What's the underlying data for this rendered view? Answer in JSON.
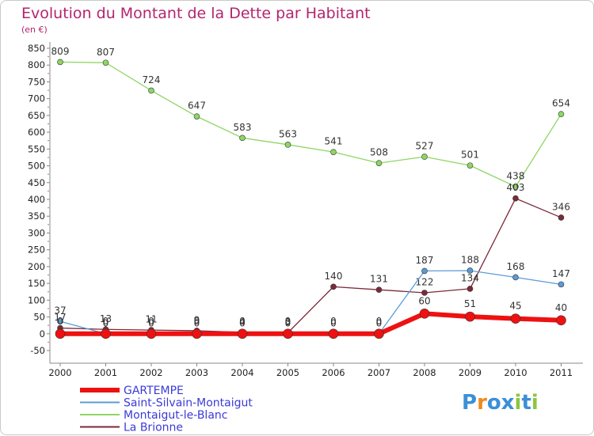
{
  "chart_data": {
    "type": "line",
    "title": "Evolution du Montant de la Dette par Habitant",
    "subtitle": "(en €)",
    "x": [
      "2000",
      "2001",
      "2002",
      "2003",
      "2004",
      "2005",
      "2006",
      "2007",
      "2008",
      "2009",
      "2010",
      "2011"
    ],
    "yticks": [
      -50,
      0,
      50,
      100,
      150,
      200,
      250,
      300,
      350,
      400,
      450,
      500,
      550,
      600,
      650,
      700,
      750,
      800,
      850
    ],
    "ylim": [
      -50,
      850
    ],
    "grid": false,
    "legend": "bottom-left",
    "series": [
      {
        "name": "Montaigut-le-Blanc",
        "color": "#8ed663",
        "values": [
          809,
          807,
          724,
          647,
          583,
          563,
          541,
          508,
          527,
          501,
          438,
          654
        ],
        "labels": [
          "809",
          "807",
          "724",
          "647",
          "583",
          "563",
          "541",
          "508",
          "527",
          "501",
          "438",
          "654"
        ],
        "width": 1.3,
        "marker": 3.5
      },
      {
        "name": "La Brionne",
        "color": "#7b2a38",
        "values": [
          17,
          13,
          11,
          9,
          4,
          3,
          140,
          131,
          122,
          134,
          403,
          346
        ],
        "labels": [
          "17",
          "13",
          "11",
          "9",
          "4",
          "3",
          "140",
          "131",
          "122",
          "134",
          "403",
          "346"
        ],
        "width": 1.3,
        "marker": 3.5
      },
      {
        "name": "Saint-Silvain-Montaigut",
        "color": "#5b9bd5",
        "values": [
          37,
          0,
          0,
          0,
          0,
          0,
          0,
          0,
          187,
          188,
          168,
          147
        ],
        "labels": [
          "37",
          "0",
          "0",
          "0",
          "0",
          "0",
          "0",
          "0",
          "187",
          "188",
          "168",
          "147"
        ],
        "width": 1.3,
        "marker": 3.5
      },
      {
        "name": "GARTEMPE",
        "color": "#ee1111",
        "values": [
          0,
          0,
          0,
          0,
          0,
          0,
          0,
          0,
          60,
          51,
          45,
          40
        ],
        "labels": [
          "0",
          "0",
          "0",
          "0",
          "0",
          "0",
          "0",
          "0",
          "60",
          "51",
          "45",
          "40"
        ],
        "width": 6,
        "marker": 6
      }
    ],
    "legend_order": [
      "GARTEMPE",
      "Saint-Silvain-Montaigut",
      "Montaigut-le-Blanc",
      "La Brionne"
    ]
  },
  "logo": {
    "text": "Proxiti",
    "letters": [
      "P",
      "r",
      "o",
      "x",
      "i",
      "t",
      "i"
    ],
    "colors": [
      "#3b8fd8",
      "#f08a1c",
      "#3b8fd8",
      "#3b8fd8",
      "#8cc63f",
      "#3b8fd8",
      "#8cc63f"
    ]
  }
}
